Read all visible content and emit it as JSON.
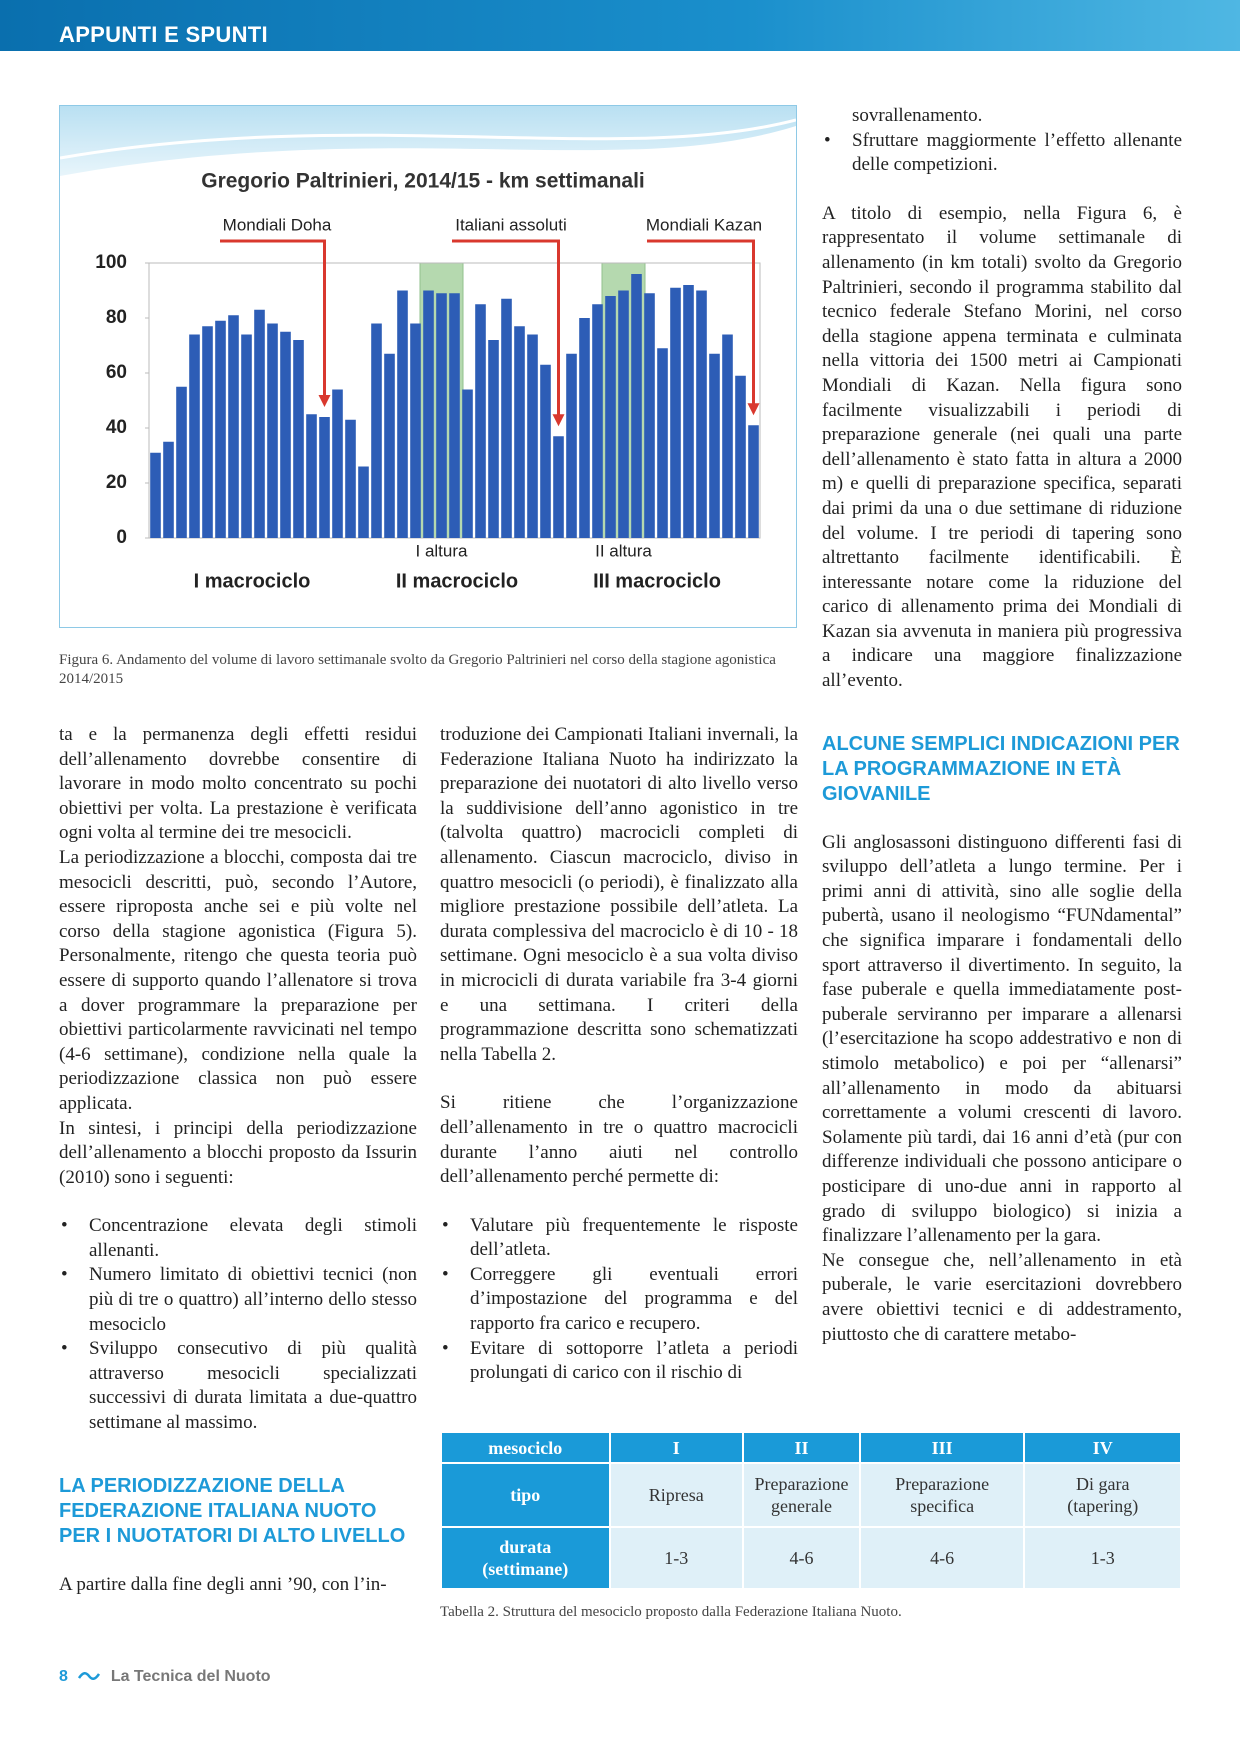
{
  "header": {
    "section": "APPUNTI E SPUNTI"
  },
  "chart_data": {
    "type": "bar",
    "title": "Gregorio Paltrinieri, 2014/15 - km settimanali",
    "categories": [
      null,
      null,
      null,
      null,
      null,
      null,
      null,
      null,
      null,
      null,
      null,
      null,
      null,
      null,
      null,
      null,
      null,
      null,
      null,
      null,
      null,
      null,
      null,
      null,
      null,
      null,
      null,
      null,
      null,
      null,
      null,
      null,
      null,
      null,
      null,
      null,
      null,
      null,
      null,
      null,
      null,
      null,
      null,
      null,
      null,
      null,
      null
    ],
    "values": [
      31,
      35,
      55,
      74,
      77,
      79,
      81,
      74,
      83,
      78,
      75,
      72,
      45,
      44,
      54,
      43,
      26,
      78,
      67,
      90,
      78,
      90,
      89,
      89,
      54,
      85,
      72,
      87,
      77,
      74,
      63,
      37,
      67,
      80,
      85,
      88,
      90,
      96,
      89,
      69,
      91,
      92,
      90,
      67,
      74,
      59,
      41
    ],
    "color": "#2d5db6",
    "ylim": [
      0,
      100
    ],
    "yticks": [
      0,
      20,
      40,
      60,
      80,
      100
    ],
    "annotations": [
      "Mondiali Doha",
      "Italiani assoluti",
      "Mondiali Kazan"
    ],
    "altitude_labels": [
      "I altura",
      "II altura"
    ],
    "macrocycles": [
      "I macrociclo",
      "II macrociclo",
      "III macrociclo"
    ]
  },
  "figure": {
    "caption": "Figura 6. Andamento del volume di lavoro settimanale svolto da Gregorio Paltrinieri nel corso della stagione agonistica 2014/2015"
  },
  "left_column": {
    "paragraphs": [
      "ta e la permanenza degli effetti residui dell’allenamento dovrebbe consentire di lavorare in modo molto concentrato su pochi obiettivi per volta. La prestazione è verificata ogni volta al termine dei tre mesocicli.",
      "La periodizzazione a blocchi, composta dai tre mesocicli descritti, può, secondo l’Autore, essere riproposta anche sei e più volte nel corso della stagione agonistica (Figura 5). Personalmente, ritengo che questa teoria può essere di supporto quando l’allenatore si trova a dover programmare la preparazione per obiettivi particolarmente ravvicinati nel tempo (4-6 settimane), condizione nella quale la periodizzazione classica non può essere applicata.",
      "In sintesi, i principi della periodizzazione dell’allenamento a blocchi proposto da Issurin (2010) sono i seguenti:"
    ],
    "bullets": [
      "Concentrazione elevata degli stimoli allenanti.",
      "Numero limitato di obiettivi tecnici (non più di tre o quattro) all’interno dello stesso mesociclo",
      "Sviluppo consecutivo di più qualità attraverso mesocicli specializzati successivi di durata limitata a due-quattro settimane al massimo."
    ],
    "heading": "LA PERIODIZZAZIONE DELLA FEDERAZIONE ITALIANA NUOTO PER I NUOTATORI DI ALTO LIVELLO",
    "closing": "A partire dalla fine degli anni ’90, con l’in-"
  },
  "middle_column": {
    "paragraphs": [
      "troduzione dei Campionati Italiani invernali, la Federazione Italiana Nuoto ha indirizzato la preparazione dei nuotatori di alto livello verso la suddivisione dell’anno agonistico in tre (talvolta quattro) macrocicli completi di allenamento. Ciascun macrociclo, diviso in quattro mesocicli (o periodi), è finalizzato alla migliore prestazione possibile dell’atleta. La durata complessiva del macrociclo è di 10 - 18 settimane. Ogni mesociclo è a sua volta diviso in microcicli di durata variabile fra 3-4 giorni e una settimana. I criteri della programmazione descritta sono schematizzati nella Tabella 2.",
      "Si ritiene che l’organizzazione dell’allenamento in tre o quattro macrocicli durante l’anno aiuti nel controllo dell’allenamento perché permette di:"
    ],
    "bullets": [
      "Valutare più frequentemente le risposte dell’atleta.",
      "Correggere gli eventuali errori d’impostazione del programma e del rapporto fra carico e recupero.",
      "Evitare di sottoporre l’atleta a periodi prolungati di carico con il rischio di"
    ]
  },
  "right_column": {
    "continuation": "sovrallenamento.",
    "bullets": [
      "Sfruttare maggiormente l’effetto allenante delle competizioni."
    ],
    "paragraph": "A titolo di esempio, nella Figura 6, è rappresentato il volume settimanale di allenamento (in km totali) svolto da Gregorio Paltrinieri, secondo il programma stabilito dal tecnico federale Stefano Morini, nel corso della stagione appena terminata e culminata nella vittoria dei 1500 metri ai Campionati Mondiali di Kazan. Nella figura sono facilmente visualizzabili i periodi di preparazione generale (nei quali una parte dell’allenamento è stato fatta in altura a 2000 m) e quelli di preparazione specifica, separati dai primi da una o due settimane di riduzione del volume. I tre periodi di tapering sono altrettanto facilmente identificabili. È interessante notare come la riduzione del carico di allenamento prima dei Mondiali di Kazan sia avvenuta in maniera più progressiva a indicare una maggiore finalizzazione all’evento.",
    "heading": "ALCUNE SEMPLICI INDICAZIONI PER LA PROGRAMMAZIONE IN ETÀ GIOVANILE",
    "paragraphs": [
      "Gli anglosassoni distinguono differenti fasi di sviluppo dell’atleta a lungo termine. Per i primi anni di attività, sino alle soglie della pubertà, usano il neologismo “FUNdamental” che significa imparare i fondamentali dello sport attraverso il divertimento. In seguito, la fase puberale e quella immediatamente post-puberale serviranno per imparare a allenarsi (l’esercitazione ha scopo addestrativo e non di stimolo metabolico) e poi per “allenarsi” all’allenamento in modo da abituarsi correttamente a volumi crescenti di lavoro. Solamente più tardi, dai 16 anni d’età (pur con differenze individuali che possono anticipare o posticipare di uno-due anni in rapporto al grado di sviluppo biologico) si inizia a finalizzare l’allenamento per la gara.",
      "Ne consegue che, nell’allenamento in età puberale, le varie esercitazioni dovrebbero avere obiettivi tecnici e di addestramento, piuttosto che di carattere metabo-"
    ]
  },
  "table": {
    "header": [
      "mesociclo",
      "I",
      "II",
      "III",
      "IV"
    ],
    "rows": [
      [
        "tipo",
        "Ripresa",
        "Preparazione generale",
        "Preparazione specifica",
        "Di gara (tapering)"
      ],
      [
        "durata (settimane)",
        "1-3",
        "4-6",
        "4-6",
        "1-3"
      ]
    ],
    "caption": "Tabella 2. Struttura del mesociclo proposto dalla Federazione Italiana Nuoto."
  },
  "footer": {
    "page": "8",
    "magazine": "La Tecnica del Nuoto"
  }
}
